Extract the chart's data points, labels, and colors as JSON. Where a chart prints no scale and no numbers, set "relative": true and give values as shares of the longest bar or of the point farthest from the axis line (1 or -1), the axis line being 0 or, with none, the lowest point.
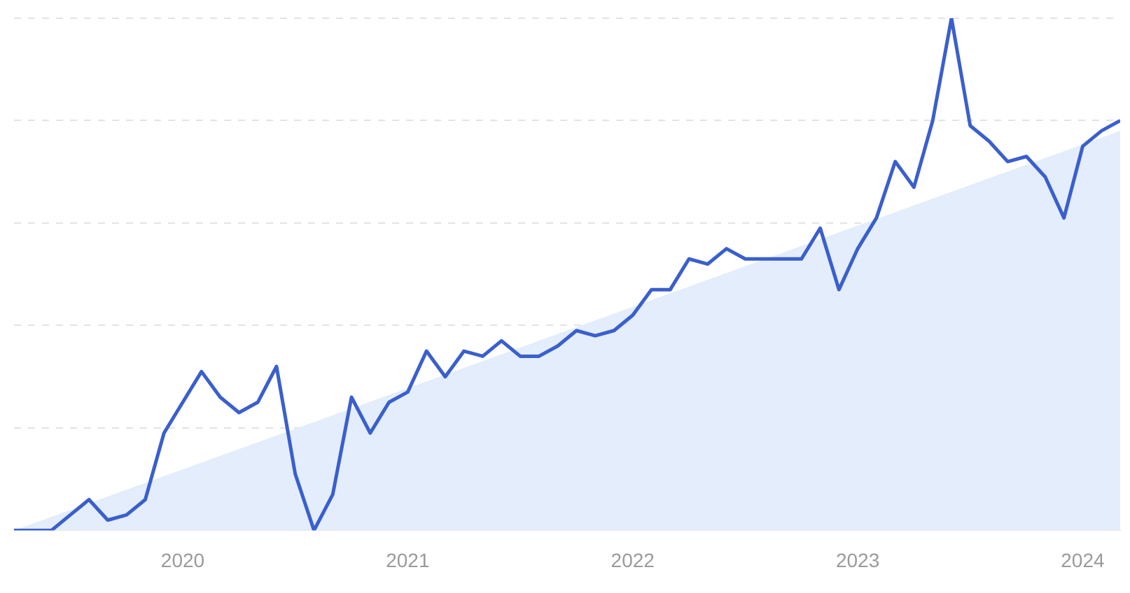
{
  "chart_data": {
    "type": "line",
    "relative": true,
    "grid": "y",
    "legend": false,
    "marker": "none",
    "line_style": "solid",
    "x": [
      "2019-04",
      "2019-05",
      "2019-06",
      "2019-07",
      "2019-08",
      "2019-09",
      "2019-10",
      "2019-11",
      "2019-12",
      "2020-01",
      "2020-02",
      "2020-03",
      "2020-04",
      "2020-05",
      "2020-06",
      "2020-07",
      "2020-08",
      "2020-09",
      "2020-10",
      "2020-11",
      "2020-12",
      "2021-01",
      "2021-02",
      "2021-03",
      "2021-04",
      "2021-05",
      "2021-06",
      "2021-07",
      "2021-08",
      "2021-09",
      "2021-10",
      "2021-11",
      "2021-12",
      "2022-01",
      "2022-02",
      "2022-03",
      "2022-04",
      "2022-05",
      "2022-06",
      "2022-07",
      "2022-08",
      "2022-09",
      "2022-10",
      "2022-11",
      "2022-12",
      "2023-01",
      "2023-02",
      "2023-03",
      "2023-04",
      "2023-05",
      "2023-06",
      "2023-07",
      "2023-08",
      "2023-09",
      "2023-10",
      "2023-11",
      "2023-12",
      "2024-01",
      "2024-02",
      "2024-03"
    ],
    "xlim": [
      "2019-04",
      "2024-03"
    ],
    "xticks": [
      "2020",
      "2021",
      "2022",
      "2023",
      "2024"
    ],
    "series": [
      {
        "type": "area",
        "color": "#e3edfb",
        "x": [
          "2019-04",
          "2024-03"
        ],
        "values": [
          0,
          0.78
        ]
      },
      {
        "color": "#3a5fcd",
        "values": [
          0,
          0,
          0,
          0.03,
          0.06,
          0.02,
          0.03,
          0.06,
          0.19,
          0.25,
          0.31,
          0.26,
          0.23,
          0.25,
          0.32,
          0.11,
          0,
          0.07,
          0.26,
          0.19,
          0.25,
          0.27,
          0.35,
          0.3,
          0.35,
          0.34,
          0.37,
          0.34,
          0.34,
          0.36,
          0.39,
          0.38,
          0.39,
          0.42,
          0.47,
          0.47,
          0.53,
          0.52,
          0.55,
          0.53,
          0.53,
          0.53,
          0.53,
          0.59,
          0.47,
          0.55,
          0.61,
          0.72,
          0.67,
          0.8,
          1,
          0.79,
          0.76,
          0.72,
          0.73,
          0.69,
          0.61,
          0.75,
          0.78,
          0.8
        ]
      }
    ]
  }
}
